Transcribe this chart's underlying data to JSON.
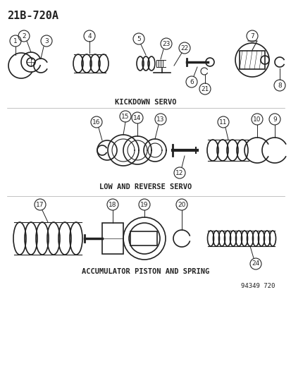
{
  "title": "21B-720A",
  "section1_label": "KICKDOWN SERVO",
  "section2_label": "LOW AND REVERSE SERVO",
  "section3_label": "ACCUMULATOR PISTON AND SPRING",
  "footer": "94349 720",
  "bg_color": "#ffffff",
  "line_color": "#222222",
  "font_color": "#111111",
  "part_numbers": {
    "section1": [
      1,
      2,
      3,
      4,
      5,
      23,
      22,
      6,
      21,
      7,
      8
    ],
    "section2": [
      16,
      15,
      14,
      13,
      12,
      11,
      10,
      9
    ],
    "section3": [
      17,
      18,
      19,
      20,
      24
    ]
  }
}
